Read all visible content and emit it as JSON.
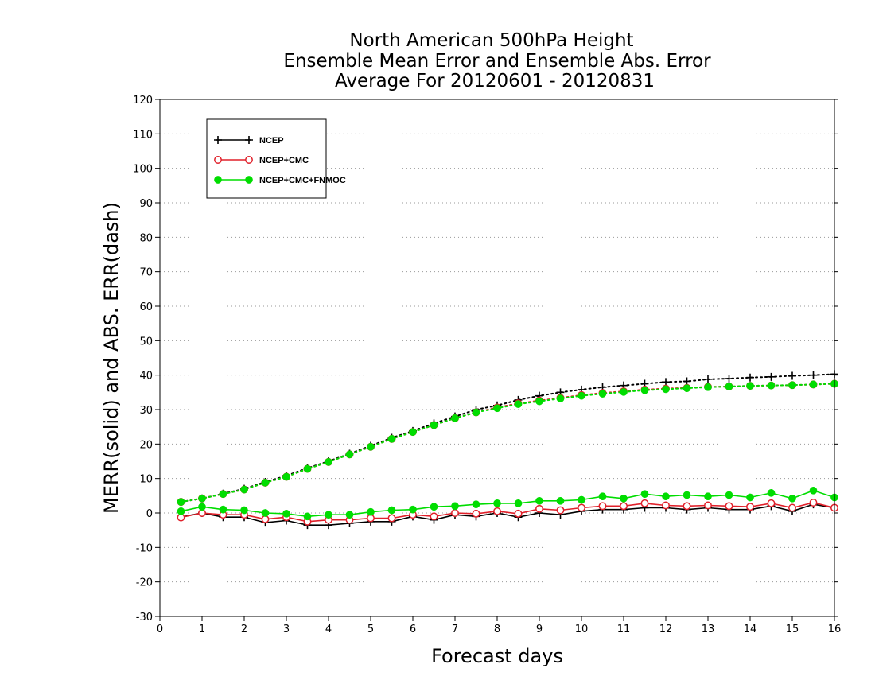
{
  "chart_data": {
    "type": "line",
    "title": [
      "North American 500hPa Height",
      "Ensemble Mean Error and Ensemble Abs. Error",
      "Average For 20120601 - 20120831"
    ],
    "xlabel": "Forecast days",
    "ylabel": "MERR(solid) and ABS. ERR(dash)",
    "xlim": [
      0,
      16
    ],
    "ylim": [
      -30,
      120
    ],
    "xticks": [
      0,
      1,
      2,
      3,
      4,
      5,
      6,
      7,
      8,
      9,
      10,
      11,
      12,
      13,
      14,
      15,
      16
    ],
    "yticks": [
      -30,
      -20,
      -10,
      0,
      10,
      20,
      30,
      40,
      50,
      60,
      70,
      80,
      90,
      100,
      110,
      120
    ],
    "grid": "horizontal-dotted",
    "legend_position": "top-left",
    "x": [
      0.5,
      1,
      1.5,
      2,
      2.5,
      3,
      3.5,
      4,
      4.5,
      5,
      5.5,
      6,
      6.5,
      7,
      7.5,
      8,
      8.5,
      9,
      9.5,
      10,
      10.5,
      11,
      11.5,
      12,
      12.5,
      13,
      13.5,
      14,
      14.5,
      15,
      15.5,
      16
    ],
    "series": [
      {
        "name": "NCEP",
        "color": "#000000",
        "marker": "plus",
        "merr": [
          -1.2,
          0,
          -1.2,
          -1.2,
          -2.8,
          -2.2,
          -3.5,
          -3.5,
          -3.0,
          -2.5,
          -2.5,
          -1.0,
          -2.0,
          -0.5,
          -1.0,
          0,
          -1.2,
          0,
          -0.5,
          0.5,
          1.0,
          1.0,
          1.5,
          1.5,
          1.0,
          1.5,
          1.0,
          1.0,
          2.0,
          0.5,
          2.5,
          1.5
        ],
        "abs_err": [
          3.2,
          4.2,
          5.6,
          7.0,
          9.0,
          10.8,
          13.0,
          15.0,
          17.2,
          19.5,
          21.8,
          23.8,
          26.0,
          28.0,
          30.0,
          31.2,
          32.8,
          34.0,
          35.0,
          35.8,
          36.5,
          37.0,
          37.5,
          38.0,
          38.2,
          38.8,
          39.0,
          39.3,
          39.5,
          39.8,
          40.0,
          40.3
        ]
      },
      {
        "name": "NCEP+CMC",
        "color": "#e0202a",
        "marker": "open-circle",
        "merr": [
          -1.3,
          0,
          -0.5,
          -0.5,
          -1.8,
          -1.2,
          -2.5,
          -2.0,
          -2.0,
          -1.5,
          -1.5,
          -0.5,
          -1.0,
          0,
          -0.2,
          0.5,
          -0.2,
          1.2,
          0.8,
          1.5,
          2.0,
          2.0,
          2.8,
          2.2,
          2.0,
          2.2,
          2.0,
          1.8,
          2.8,
          1.5,
          3.0,
          1.5
        ],
        "abs_err": [
          3.2,
          4.2,
          5.5,
          6.8,
          8.8,
          10.5,
          12.8,
          14.8,
          17.0,
          19.2,
          21.5,
          23.5,
          25.5,
          27.5,
          29.2,
          30.6,
          31.8,
          32.6,
          33.4,
          34.2,
          34.8,
          35.3,
          35.8,
          36.1,
          36.3,
          36.6,
          36.7,
          36.9,
          37.0,
          37.1,
          37.3,
          37.5
        ]
      },
      {
        "name": "NCEP+CMC+FNMOC",
        "color": "#00dd00",
        "marker": "filled-circle",
        "merr": [
          0.5,
          1.8,
          1.0,
          0.8,
          0,
          -0.2,
          -1.0,
          -0.5,
          -0.5,
          0.3,
          0.8,
          1.0,
          1.8,
          2.0,
          2.5,
          2.8,
          2.8,
          3.5,
          3.5,
          3.8,
          4.8,
          4.2,
          5.5,
          4.8,
          5.2,
          4.8,
          5.2,
          4.5,
          5.8,
          4.2,
          6.5,
          4.5
        ],
        "abs_err": [
          3.2,
          4.2,
          5.5,
          6.8,
          8.8,
          10.5,
          12.8,
          14.8,
          17.0,
          19.2,
          21.5,
          23.5,
          25.5,
          27.5,
          29.2,
          30.4,
          31.6,
          32.4,
          33.2,
          34.0,
          34.6,
          35.1,
          35.6,
          35.9,
          36.2,
          36.5,
          36.7,
          36.9,
          37.0,
          37.1,
          37.3,
          37.5
        ]
      }
    ]
  }
}
